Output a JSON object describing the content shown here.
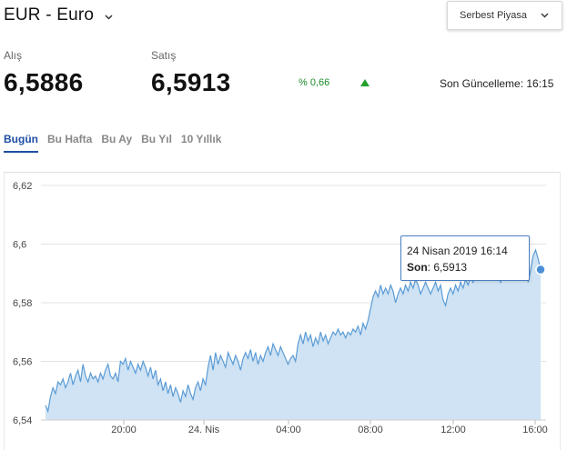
{
  "header": {
    "title": "EUR - Euro",
    "market_select": "Serbest Piyasa"
  },
  "quote": {
    "buy_label": "Alış",
    "buy_value": "6,5886",
    "sell_label": "Satış",
    "sell_value": "6,5913",
    "change": "% 0,66",
    "change_direction": "up",
    "last_update": "Son Güncelleme: 16:15"
  },
  "tabs": [
    {
      "label": "Bugün",
      "active": true
    },
    {
      "label": "Bu Hafta",
      "active": false
    },
    {
      "label": "Bu Ay",
      "active": false
    },
    {
      "label": "Bu Yıl",
      "active": false
    },
    {
      "label": "10 Yıllık",
      "active": false
    }
  ],
  "tooltip": {
    "date": "24 Nisan 2019 16:14",
    "label": "Son",
    "value": ": 6,5913"
  },
  "colors": {
    "accent": "#1f4ea3",
    "line": "#5b9bd5",
    "area": "#cfe3f4",
    "marker": "#4a8fd6",
    "up": "#22a02a"
  },
  "chart_data": {
    "type": "area",
    "x_tick_labels": [
      "20:00",
      "24. Nis",
      "04:00",
      "08:00",
      "12:00",
      "16:00"
    ],
    "y_tick_labels": [
      "6,62",
      "6,6",
      "6,58",
      "6,56",
      "6,54"
    ],
    "ylim": [
      6.54,
      6.62
    ],
    "grid": true,
    "series": [
      {
        "values": [
          6.545,
          6.543,
          6.548,
          6.551,
          6.549,
          6.553,
          6.552,
          6.554,
          6.551,
          6.553,
          6.556,
          6.552,
          6.555,
          6.557,
          6.553,
          6.559,
          6.555,
          6.553,
          6.556,
          6.554,
          6.555,
          6.553,
          6.556,
          6.554,
          6.557,
          6.559,
          6.555,
          6.554,
          6.556,
          6.553,
          6.56,
          6.559,
          6.561,
          6.557,
          6.56,
          6.558,
          6.556,
          6.559,
          6.557,
          6.56,
          6.558,
          6.555,
          6.558,
          6.554,
          6.557,
          6.552,
          6.554,
          6.55,
          6.553,
          6.549,
          6.552,
          6.548,
          6.551,
          6.549,
          6.546,
          6.55,
          6.548,
          6.552,
          6.549,
          6.547,
          6.551,
          6.553,
          6.55,
          6.554,
          6.552,
          6.558,
          6.562,
          6.557,
          6.563,
          6.559,
          6.562,
          6.56,
          6.558,
          6.563,
          6.561,
          6.559,
          6.562,
          6.56,
          6.557,
          6.561,
          6.563,
          6.561,
          6.564,
          6.56,
          6.563,
          6.559,
          6.562,
          6.56,
          6.563,
          6.565,
          6.562,
          6.566,
          6.564,
          6.562,
          6.565,
          6.563,
          6.561,
          6.559,
          6.561,
          6.562,
          6.56,
          6.566,
          6.569,
          6.566,
          6.57,
          6.567,
          6.569,
          6.565,
          6.568,
          6.566,
          6.57,
          6.567,
          6.569,
          6.566,
          6.568,
          6.57,
          6.569,
          6.571,
          6.569,
          6.57,
          6.568,
          6.57,
          6.569,
          6.571,
          6.57,
          6.572,
          6.569,
          6.573,
          6.571,
          6.574,
          6.578,
          6.582,
          6.584,
          6.582,
          6.586,
          6.583,
          6.585,
          6.583,
          6.586,
          6.584,
          6.58,
          6.583,
          6.585,
          6.583,
          6.586,
          6.584,
          6.587,
          6.585,
          6.588,
          6.586,
          6.583,
          6.585,
          6.587,
          6.585,
          6.583,
          6.585,
          6.587,
          6.584,
          6.586,
          6.581,
          6.579,
          6.583,
          6.585,
          6.583,
          6.586,
          6.584,
          6.587,
          6.585,
          6.588,
          6.586,
          6.589,
          6.587,
          6.59,
          6.588,
          6.591,
          6.589,
          6.592,
          6.59,
          6.593,
          6.589,
          6.591,
          6.589,
          6.587,
          6.59,
          6.588,
          6.591,
          6.593,
          6.595,
          6.591,
          6.594,
          6.597,
          6.594,
          6.592,
          6.587,
          6.591,
          6.596,
          6.598,
          6.595,
          6.5913
        ]
      }
    ]
  }
}
